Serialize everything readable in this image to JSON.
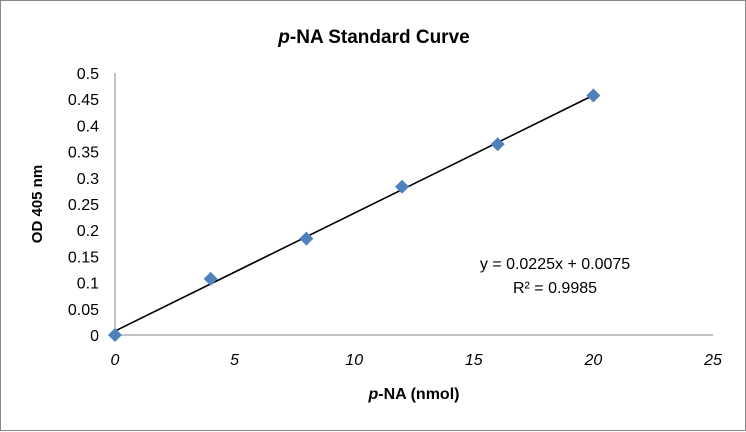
{
  "chart_data": {
    "type": "scatter",
    "title": "p-NA Standard Curve",
    "title_italic_part": "p",
    "title_rest": "-NA Standard Curve",
    "xlabel": "p-NA (nmol)",
    "xlabel_italic_part": "p",
    "xlabel_rest": "-NA (nmol)",
    "ylabel": "OD 405 nm",
    "xlim": [
      0,
      25
    ],
    "ylim": [
      0,
      0.5
    ],
    "x_ticks": [
      "0",
      "5",
      "10",
      "15",
      "20",
      "25"
    ],
    "y_ticks": [
      "0",
      "0.05",
      "0.1",
      "0.15",
      "0.2",
      "0.25",
      "0.3",
      "0.35",
      "0.4",
      "0.45",
      "0.5"
    ],
    "grid": false,
    "marker": "diamond",
    "marker_color": "#4f81bd",
    "points": [
      {
        "x": 0,
        "y": 0
      },
      {
        "x": 4,
        "y": 0.107
      },
      {
        "x": 8,
        "y": 0.184
      },
      {
        "x": 12,
        "y": 0.283
      },
      {
        "x": 16,
        "y": 0.364
      },
      {
        "x": 20,
        "y": 0.457
      }
    ],
    "trendline": {
      "type": "linear",
      "slope": 0.0225,
      "intercept": 0.0075,
      "x_range": [
        0,
        20
      ],
      "color": "#000000"
    },
    "equation_label": "y = 0.0225x + 0.0075",
    "r2_label": "R² = 0.9985"
  }
}
